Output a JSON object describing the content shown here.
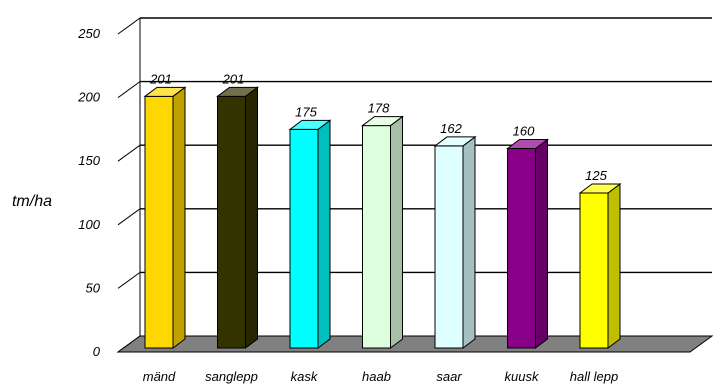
{
  "chart_data": {
    "type": "bar",
    "title": "",
    "xlabel": "",
    "ylabel": "tm/ha",
    "ylim": [
      0,
      250
    ],
    "yticks": [
      0,
      50,
      100,
      150,
      200,
      250
    ],
    "grid": true,
    "categories": [
      "mänd",
      "sanglepp",
      "kask",
      "haab",
      "saar",
      "kuusk",
      "hall lepp"
    ],
    "values": [
      201,
      201,
      175,
      178,
      162,
      160,
      125
    ],
    "value_labels": [
      "201",
      "201",
      "175",
      "178",
      "162",
      "160",
      "125"
    ],
    "colors": [
      "#ffd700",
      "#333300",
      "#00ffff",
      "#ddffdd",
      "#ddffff",
      "#880088",
      "#ffff00"
    ]
  }
}
